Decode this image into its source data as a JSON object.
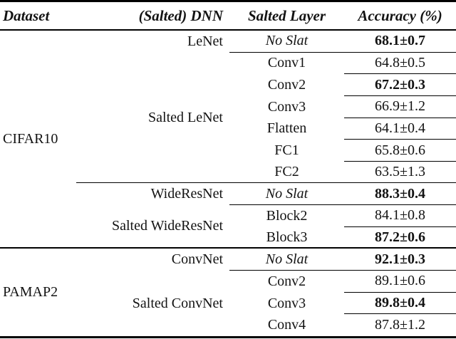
{
  "table": {
    "headers": {
      "dataset": "Dataset",
      "dnn": "(Salted) DNN",
      "layer": "Salted Layer",
      "accuracy": "Accuracy (%)"
    },
    "datasets": [
      {
        "name": "CIFAR10"
      },
      {
        "name": "PAMAP2"
      }
    ],
    "dnns": [
      {
        "name": "LeNet"
      },
      {
        "name": "Salted LeNet"
      },
      {
        "name": "WideResNet"
      },
      {
        "name": "Salted WideResNet"
      },
      {
        "name": "ConvNet"
      },
      {
        "name": "Salted ConvNet"
      }
    ],
    "rows": [
      {
        "layer": "No Slat",
        "accuracy": "68.1±0.7",
        "emphasis": "bold",
        "layer_style": "italic"
      },
      {
        "layer": "Conv1",
        "accuracy": "64.8±0.5",
        "emphasis": "none",
        "layer_style": "normal"
      },
      {
        "layer": "Conv2",
        "accuracy": "67.2±0.3",
        "emphasis": "bold",
        "layer_style": "normal"
      },
      {
        "layer": "Conv3",
        "accuracy": "66.9±1.2",
        "emphasis": "none",
        "layer_style": "normal"
      },
      {
        "layer": "Flatten",
        "accuracy": "64.1±0.4",
        "emphasis": "none",
        "layer_style": "normal"
      },
      {
        "layer": "FC1",
        "accuracy": "65.8±0.6",
        "emphasis": "none",
        "layer_style": "normal"
      },
      {
        "layer": "FC2",
        "accuracy": "63.5±1.3",
        "emphasis": "none",
        "layer_style": "normal"
      },
      {
        "layer": "No Slat",
        "accuracy": "88.3±0.4",
        "emphasis": "bold",
        "layer_style": "italic"
      },
      {
        "layer": "Block2",
        "accuracy": "84.1±0.8",
        "emphasis": "none",
        "layer_style": "normal"
      },
      {
        "layer": "Block3",
        "accuracy": "87.2±0.6",
        "emphasis": "bold",
        "layer_style": "normal"
      },
      {
        "layer": "No Slat",
        "accuracy": "92.1±0.3",
        "emphasis": "bold",
        "layer_style": "italic"
      },
      {
        "layer": "Conv2",
        "accuracy": "89.1±0.6",
        "emphasis": "none",
        "layer_style": "normal"
      },
      {
        "layer": "Conv3",
        "accuracy": "89.8±0.4",
        "emphasis": "bold",
        "layer_style": "normal"
      },
      {
        "layer": "Conv4",
        "accuracy": "87.8±1.2",
        "emphasis": "none",
        "layer_style": "normal"
      }
    ]
  }
}
